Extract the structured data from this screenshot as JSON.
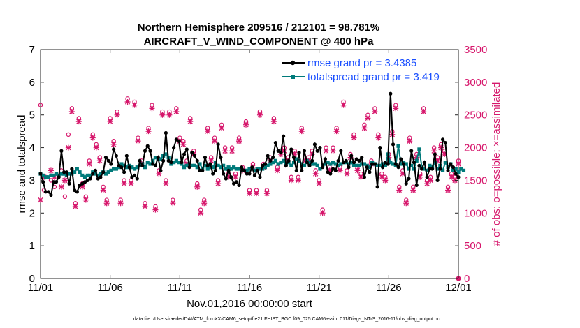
{
  "chart_data": {
    "type": "line",
    "title": [
      "Northern Hemisphere 209516 / 212101 = 98.781%",
      "AIRCRAFT_V_WIND_COMPONENT @ 400 hPa"
    ],
    "xlabel": "Nov.01,2016 00:00:00 start",
    "ylabel": "rmse and totalspread",
    "y2label": "# of obs: o=possible; ×=assimilated",
    "xlim": [
      0,
      30
    ],
    "ylim": [
      0,
      7
    ],
    "y2lim": [
      0,
      3500
    ],
    "xticks": [
      0,
      5,
      10,
      15,
      20,
      25,
      30
    ],
    "xticklabels": [
      "11/01",
      "11/06",
      "11/11",
      "11/16",
      "11/21",
      "11/26",
      "12/01"
    ],
    "yticks": [
      0,
      1,
      2,
      3,
      4,
      5,
      6,
      7
    ],
    "y2ticks": [
      0,
      500,
      1000,
      1500,
      2000,
      2500,
      3000,
      3500
    ],
    "legend": {
      "location": "top-right",
      "entries": [
        "rmse grand pr = 3.4385",
        "totalspread grand pr = 3.419"
      ]
    },
    "colors": {
      "rmse": "#000000",
      "spread": "#007a7a",
      "obs": "#d6166b",
      "legend_text": "#1a4fff"
    },
    "obs_levels": [
      1000,
      1700,
      2000,
      2200,
      2600,
      2750
    ],
    "series": [
      {
        "name": "rmse",
        "values": [
          3.2,
          2.95,
          2.65,
          2.65,
          2.55,
          2.95,
          2.95,
          3.1,
          3.9,
          3.25,
          3.25,
          2.9,
          3.35,
          2.7,
          2.65,
          2.85,
          2.9,
          2.95,
          3.0,
          3.05,
          3.2,
          3.3,
          3.05,
          3.1,
          3.25,
          3.7,
          3.6,
          3.5,
          3.95,
          3.75,
          3.45,
          3.4,
          3.25,
          3.75,
          3.4,
          3.1,
          3.15,
          3.05,
          3.6,
          3.45,
          3.9,
          4.05,
          3.9,
          3.5,
          3.45,
          3.7,
          3.3,
          3.6,
          4.45,
          3.6,
          3.55,
          4.0,
          4.25,
          4.2,
          3.55,
          3.8,
          3.95,
          3.4,
          3.85,
          3.75,
          3.6,
          3.3,
          3.3,
          3.7,
          3.45,
          3.5,
          3.2,
          3.3,
          4.1,
          3.7,
          3.2,
          3.05,
          3.3,
          3.1,
          2.9,
          2.95,
          2.85,
          3.4,
          3.3,
          3.2,
          3.2,
          3.4,
          3.15,
          3.3,
          3.1,
          3.45,
          3.5,
          3.75,
          3.6,
          3.7,
          4.15,
          3.9,
          3.85,
          4.35,
          3.45,
          3.6,
          3.95,
          3.7,
          3.3,
          3.85,
          3.3,
          3.9,
          3.55,
          3.45,
          3.6,
          4.1,
          3.9,
          4.0,
          3.4,
          3.65,
          3.25,
          3.2,
          3.35,
          3.3,
          3.6,
          3.9,
          3.55,
          3.6,
          3.4,
          3.75,
          3.55,
          3.65,
          3.6,
          3.7,
          3.1,
          3.4,
          3.25,
          3.5,
          3.5,
          2.8,
          4.0,
          3.4,
          3.55,
          3.5,
          5.65,
          4.1,
          3.5,
          3.4,
          3.65,
          3.5,
          2.9,
          3.05,
          3.9,
          3.55,
          2.85,
          3.45,
          3.35,
          3.55,
          3.1,
          3.35,
          3.35,
          3.8,
          3.0,
          3.35,
          4.25,
          4.15,
          3.3,
          3.5,
          3.4,
          3.2,
          3.1
        ]
      },
      {
        "name": "totalspread",
        "values": [
          3.2,
          3.15,
          3.1,
          3.1,
          3.15,
          3.15,
          3.2,
          3.15,
          3.2,
          3.2,
          3.15,
          3.2,
          3.2,
          3.25,
          3.35,
          3.25,
          3.15,
          3.1,
          3.15,
          3.15,
          3.25,
          3.2,
          3.15,
          3.2,
          3.25,
          3.2,
          3.25,
          3.3,
          3.35,
          3.35,
          3.4,
          3.5,
          3.45,
          3.4,
          3.45,
          3.4,
          3.35,
          3.4,
          3.45,
          3.5,
          3.4,
          3.55,
          3.5,
          3.6,
          3.7,
          3.65,
          3.65,
          3.75,
          3.8,
          3.7,
          3.5,
          3.55,
          3.6,
          3.55,
          3.5,
          3.4,
          3.45,
          3.5,
          3.45,
          3.45,
          3.4,
          3.5,
          3.35,
          3.45,
          3.35,
          3.4,
          3.4,
          3.55,
          3.45,
          3.4,
          3.45,
          3.35,
          3.4,
          3.35,
          3.4,
          3.35,
          3.35,
          3.3,
          3.3,
          3.3,
          3.35,
          3.35,
          3.3,
          3.35,
          3.35,
          3.35,
          3.4,
          3.45,
          3.5,
          3.55,
          3.6,
          3.5,
          3.55,
          3.6,
          3.5,
          3.55,
          3.45,
          3.55,
          3.65,
          3.6,
          3.5,
          3.45,
          3.6,
          3.55,
          3.5,
          3.5,
          3.45,
          3.35,
          3.45,
          3.5,
          3.55,
          3.5,
          3.55,
          3.5,
          3.45,
          3.5,
          3.55,
          3.55,
          3.5,
          3.55,
          3.45,
          3.45,
          3.45,
          3.5,
          3.5,
          3.45,
          3.4,
          3.55,
          3.5,
          3.45,
          3.45,
          3.5,
          3.45,
          3.8,
          3.55,
          3.5,
          3.45,
          4.05,
          3.5,
          3.55,
          3.5,
          3.35,
          3.45,
          3.35,
          3.6,
          3.95,
          3.4,
          3.35,
          3.3,
          3.45,
          3.4,
          3.55,
          3.35,
          3.45,
          3.3,
          3.55,
          3.4,
          3.5,
          3.3,
          3.35,
          3.25,
          3.35,
          3.3
        ]
      }
    ],
    "obs": {
      "x": [
        0,
        0.25,
        0.75,
        1.0,
        1.5,
        1.75,
        2.0,
        2.25,
        2.5,
        2.75,
        3.0,
        3.25,
        3.5,
        3.75,
        4.0,
        4.25,
        4.5,
        4.75,
        5.0,
        5.25,
        5.5,
        5.75,
        6.0,
        6.25,
        6.5,
        6.75,
        7.0,
        7.25,
        7.5,
        7.75,
        8.0,
        8.25,
        8.5,
        8.75,
        9.0,
        9.25,
        9.5,
        9.75,
        10.0,
        10.25,
        10.5,
        10.75,
        11.0,
        11.25,
        11.5,
        11.75,
        12.0,
        12.25,
        12.5,
        12.75,
        13.0,
        13.25,
        13.5,
        13.75,
        14.0,
        14.25,
        14.5,
        14.75,
        15.0,
        15.25,
        15.5,
        15.75,
        16.0,
        16.25,
        16.5,
        16.75,
        17.0,
        17.25,
        17.5,
        17.75,
        18.0,
        18.25,
        18.5,
        18.75,
        19.0,
        19.25,
        19.5,
        19.75,
        20.0,
        20.25,
        20.5,
        20.75,
        21.0,
        21.25,
        21.5,
        21.75,
        22.0,
        22.25,
        22.5,
        22.75,
        23.0,
        23.25,
        23.5,
        23.75,
        24.0,
        24.25,
        24.5,
        24.75,
        25.0,
        25.25,
        25.5,
        25.75,
        26.0,
        26.25,
        26.5,
        26.75,
        27.0,
        27.25,
        27.5,
        27.75,
        28.0,
        28.25,
        28.5,
        28.75,
        29.0,
        29.25,
        29.5,
        29.75,
        30.0
      ],
      "possible": [
        2650,
        1350,
        1500,
        1400,
        1650,
        1250,
        2200,
        2600,
        1150,
        2450,
        1450,
        1250,
        1800,
        2200,
        2050,
        1850,
        1400,
        1200,
        2450,
        2100,
        2550,
        1200,
        1500,
        2750,
        1500,
        2700,
        2150,
        1800,
        1150,
        2300,
        2650,
        1100,
        1650,
        2550,
        1500,
        2550,
        1200,
        2600,
        2150,
        2100,
        1800,
        2450,
        1950,
        1450,
        1050,
        1200,
        2300,
        1850,
        2150,
        1500,
        2350,
        2000,
        1600,
        2000,
        1600,
        2150,
        1700,
        2400,
        1350,
        1750,
        1350,
        2550,
        1750,
        1350,
        1850,
        2450,
        1700,
        1950,
        2000,
        1850,
        1550,
        1950,
        1550,
        2300,
        1850,
        1850,
        1950,
        1650,
        1500,
        1050,
        2000,
        1700,
        2000,
        2300,
        1700,
        2700,
        1650,
        1900,
        2200,
        1700,
        1600,
        2350,
        2500,
        1800,
        2600,
        2200,
        1600,
        1550,
        1900,
        2250,
        2650,
        1400,
        1650,
        1200,
        2150,
        1400,
        1900,
        1600,
        2600,
        1500,
        1550,
        2000,
        1850,
        2050,
        1950,
        1400,
        1600,
        1550,
        1800,
        1400,
        1600,
        1000,
        1600
      ],
      "assimilated": [
        1200,
        1550,
        1650,
        1550,
        1400,
        1500,
        2000,
        2550,
        1100,
        2400,
        1400,
        1200,
        1750,
        2150,
        2000,
        1800,
        1350,
        1150,
        2400,
        2050,
        2500,
        1150,
        1450,
        2700,
        1450,
        2650,
        2100,
        1750,
        1100,
        2250,
        2600,
        1050,
        1600,
        2500,
        1450,
        2500,
        1150,
        2550,
        2100,
        2050,
        1750,
        2400,
        1900,
        1400,
        1000,
        1150,
        2250,
        1800,
        2100,
        1450,
        2300,
        1950,
        1550,
        1950,
        1550,
        2100,
        1650,
        2350,
        1300,
        1700,
        1300,
        2500,
        1700,
        1300,
        1800,
        2400,
        1650,
        1900,
        1950,
        1800,
        1500,
        1900,
        1500,
        2250,
        1800,
        1800,
        1900,
        1600,
        1450,
        1000,
        1950,
        1650,
        1950,
        2250,
        1650,
        2650,
        1600,
        1850,
        2150,
        1650,
        1550,
        2300,
        2450,
        1750,
        2550,
        2150,
        1550,
        1500,
        1850,
        2200,
        2600,
        1350,
        1600,
        1150,
        2100,
        1350,
        1850,
        1550,
        2550,
        1450,
        1500,
        1950,
        1800,
        2000,
        1900,
        1350,
        1550,
        1500,
        1750,
        1350,
        1550,
        900,
        1550
      ]
    }
  },
  "footnote": "data file: /Users/raeder/DAI/ATM_forcXX/CAM6_setup/f.e21.FHIST_BGC.f09_025.CAM6assim.011/Diags_NTrS_2016-11/obs_diag_output.nc"
}
